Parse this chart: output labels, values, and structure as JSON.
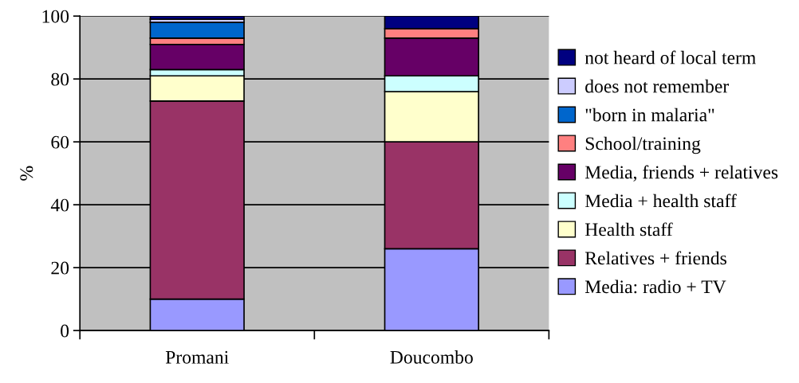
{
  "chart_data": {
    "type": "bar",
    "stacked": true,
    "ylabel": "%",
    "categories": [
      "Promani",
      "Doucombo"
    ],
    "series": [
      {
        "name": "Media: radio + TV",
        "color": "#9999ff",
        "values": [
          10,
          26
        ]
      },
      {
        "name": "Relatives + friends",
        "color": "#993366",
        "values": [
          63,
          34
        ]
      },
      {
        "name": "Health staff",
        "color": "#ffffcc",
        "values": [
          8,
          16
        ]
      },
      {
        "name": "Media + health staff",
        "color": "#ccffff",
        "values": [
          2,
          5
        ]
      },
      {
        "name": "Media, friends + relatives",
        "color": "#660066",
        "values": [
          8,
          12
        ]
      },
      {
        "name": "School/training",
        "color": "#ff8080",
        "values": [
          2,
          3
        ]
      },
      {
        "name": "\"born in malaria\"",
        "color": "#0066cc",
        "values": [
          5,
          0
        ]
      },
      {
        "name": "does not remember",
        "color": "#ccccff",
        "values": [
          1,
          0
        ]
      },
      {
        "name": "not heard of local term",
        "color": "#000080",
        "values": [
          1,
          4
        ]
      }
    ],
    "ylim": [
      0,
      100
    ],
    "yticks": [
      0,
      20,
      40,
      60,
      80,
      100
    ],
    "grid": "y",
    "legend": "right"
  }
}
